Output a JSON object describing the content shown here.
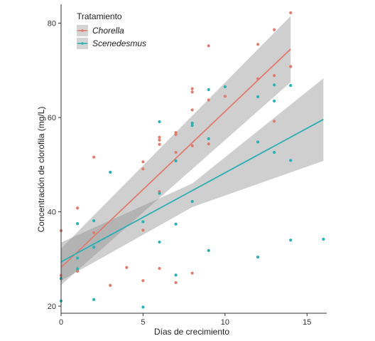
{
  "chart_data": {
    "type": "scatter",
    "xlabel": "Días de crecimiento",
    "ylabel": "Concentración de clorofila (mg/L)",
    "xlim": [
      0,
      16.2
    ],
    "ylim": [
      18.5,
      84
    ],
    "xticks": [
      0,
      5,
      10,
      15
    ],
    "yticks": [
      20,
      40,
      60,
      80
    ],
    "grid": false,
    "legend": {
      "title": "Tratamiento",
      "position": "top-left"
    },
    "series": [
      {
        "name": "Chorella",
        "color": "#e07b6f",
        "points": [
          [
            0,
            36.0
          ],
          [
            0,
            26.5
          ],
          [
            0,
            25.8
          ],
          [
            1,
            40.8
          ],
          [
            1,
            27.4
          ],
          [
            2,
            51.6
          ],
          [
            2,
            35.6
          ],
          [
            3,
            24.4
          ],
          [
            4,
            28.2
          ],
          [
            5,
            50.6
          ],
          [
            5,
            49.1
          ],
          [
            5,
            36.1
          ],
          [
            5,
            25.4
          ],
          [
            6,
            55.8
          ],
          [
            6,
            55.2
          ],
          [
            6,
            54.3
          ],
          [
            6,
            44.3
          ],
          [
            6,
            28.0
          ],
          [
            7,
            56.8
          ],
          [
            7,
            56.4
          ],
          [
            7,
            52.6
          ],
          [
            7,
            25.0
          ],
          [
            8,
            66.1
          ],
          [
            8,
            65.4
          ],
          [
            8,
            61.6
          ],
          [
            8,
            54.0
          ],
          [
            8,
            27.0
          ],
          [
            9,
            75.2
          ],
          [
            9,
            63.7
          ],
          [
            9,
            54.4
          ],
          [
            10,
            64.5
          ],
          [
            12,
            75.5
          ],
          [
            12,
            68.2
          ],
          [
            13,
            78.6
          ],
          [
            13,
            68.9
          ],
          [
            13,
            59.2
          ],
          [
            14,
            82.2
          ],
          [
            14,
            70.8
          ]
        ],
        "trend": {
          "x": [
            0,
            14
          ],
          "y": [
            28.2,
            74.5
          ]
        },
        "ci": {
          "x": [
            0,
            14
          ],
          "upper": [
            32.2,
            81.5
          ],
          "lower": [
            24.5,
            67.5
          ]
        }
      },
      {
        "name": "Scenedesmus",
        "color": "#2bb0b4",
        "points": [
          [
            0,
            25.9
          ],
          [
            0,
            21.1
          ],
          [
            1,
            37.5
          ],
          [
            1,
            30.2
          ],
          [
            1,
            27.9
          ],
          [
            2,
            38.1
          ],
          [
            2,
            32.5
          ],
          [
            2,
            21.4
          ],
          [
            3,
            48.4
          ],
          [
            5,
            37.9
          ],
          [
            5,
            19.8
          ],
          [
            6,
            59.1
          ],
          [
            6,
            43.9
          ],
          [
            6,
            33.6
          ],
          [
            7,
            50.8
          ],
          [
            7,
            37.4
          ],
          [
            7,
            26.6
          ],
          [
            8,
            58.8
          ],
          [
            8,
            58.3
          ],
          [
            8,
            42.2
          ],
          [
            9,
            65.9
          ],
          [
            9,
            55.5
          ],
          [
            9,
            31.8
          ],
          [
            10,
            66.5
          ],
          [
            12,
            64.4
          ],
          [
            12,
            54.8
          ],
          [
            12,
            30.4
          ],
          [
            13,
            66.9
          ],
          [
            13,
            63.5
          ],
          [
            13,
            52.6
          ],
          [
            14,
            66.8
          ],
          [
            14,
            50.9
          ],
          [
            14,
            34.0
          ],
          [
            16,
            34.2
          ]
        ],
        "trend": {
          "x": [
            0,
            16
          ],
          "y": [
            29.4,
            59.6
          ]
        },
        "ci": {
          "x": [
            0,
            8,
            16
          ],
          "upper": [
            33.5,
            46.0,
            68.3
          ],
          "lower": [
            25.4,
            41.0,
            50.8
          ]
        }
      }
    ]
  }
}
